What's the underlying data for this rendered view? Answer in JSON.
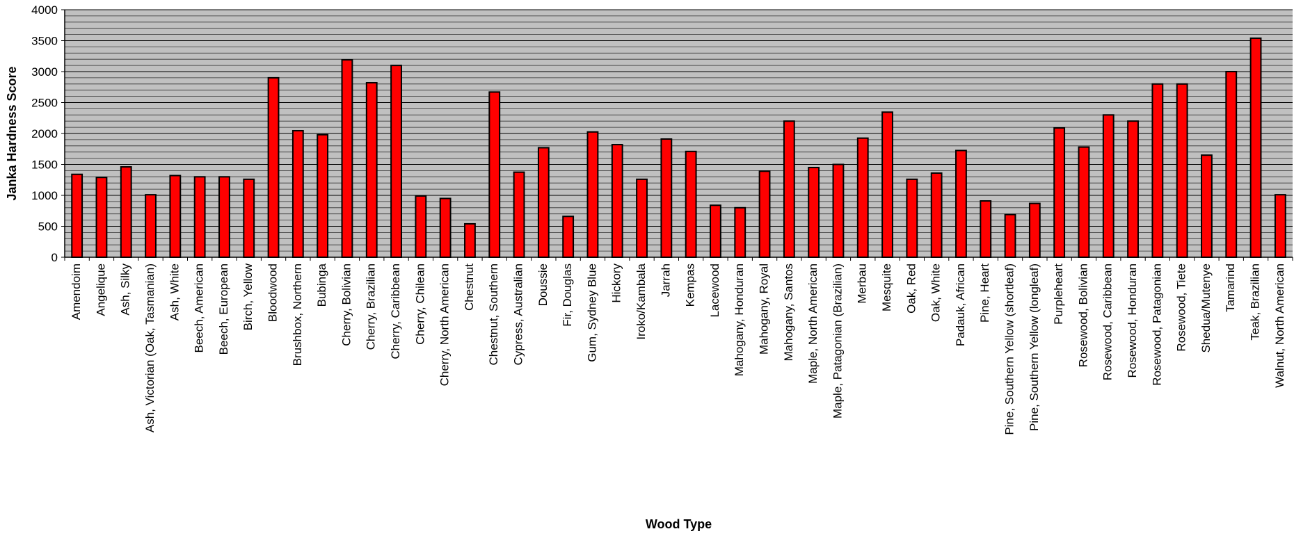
{
  "chart_data": {
    "type": "bar",
    "title": "",
    "xlabel": "Wood Type",
    "ylabel": "Janka Hardness Score",
    "ylim": [
      0,
      4000
    ],
    "yticks": [
      "0",
      "500",
      "1000",
      "1500",
      "2000",
      "2500",
      "3000",
      "3500",
      "4000"
    ],
    "gridlines": true,
    "minor_grid_step": 100,
    "colors": {
      "bar": "#ff0000",
      "bar_edge": "#000000",
      "plot_bg": "#c0c0c0",
      "grid": "#000000"
    },
    "categories": [
      "Amendoim",
      "Angelique",
      "Ash, Silky",
      "Ash, Victorian (Oak, Tasmanian)",
      "Ash, White",
      "Beech, American",
      "Beech, European",
      "Birch, Yellow",
      "Bloodwood",
      "Brushbox, Northern",
      "Bubinga",
      "Cherry, Bolivian",
      "Cherry, Brazilian",
      "Cherry, Caribbean",
      "Cherry, Chilean",
      "Cherry, North American",
      "Chestnut",
      "Chestnut, Southern",
      "Cypress, Australian",
      "Doussie",
      "Fir, Douglas",
      "Gum, Sydney Blue",
      "Hickory",
      "Iroko/Kambala",
      "Jarrah",
      "Kempas",
      "Lacewood",
      "Mahogany, Honduran",
      "Mahogany, Royal",
      "Mahogany, Santos",
      "Maple, North American",
      "Maple, Patagonian (Brazilian)",
      "Merbau",
      "Mesquite",
      "Oak, Red",
      "Oak, White",
      "Padauk, African",
      "Pine, Heart",
      "Pine, Southern Yellow (shortleaf)",
      "Pine, Southern Yellow (longleaf)",
      "Purpleheart",
      "Rosewood, Bolivian",
      "Rosewood, Caribbean",
      "Rosewood, Honduran",
      "Rosewood, Patagonian",
      "Rosewood, Tiete",
      "Shedua/Mutenye",
      "Tamarind",
      "Teak, Brazilian",
      "Walnut, North American"
    ],
    "values": [
      1340,
      1290,
      1460,
      1010,
      1320,
      1300,
      1300,
      1260,
      2900,
      2045,
      1980,
      3190,
      2820,
      3100,
      990,
      950,
      540,
      2670,
      1375,
      1770,
      660,
      2025,
      1820,
      1260,
      1910,
      1710,
      840,
      800,
      1390,
      2200,
      1450,
      1500,
      1925,
      2345,
      1260,
      1360,
      1725,
      910,
      690,
      870,
      2090,
      1780,
      2300,
      2200,
      2800,
      2800,
      1650,
      3000,
      3540,
      1010
    ]
  }
}
